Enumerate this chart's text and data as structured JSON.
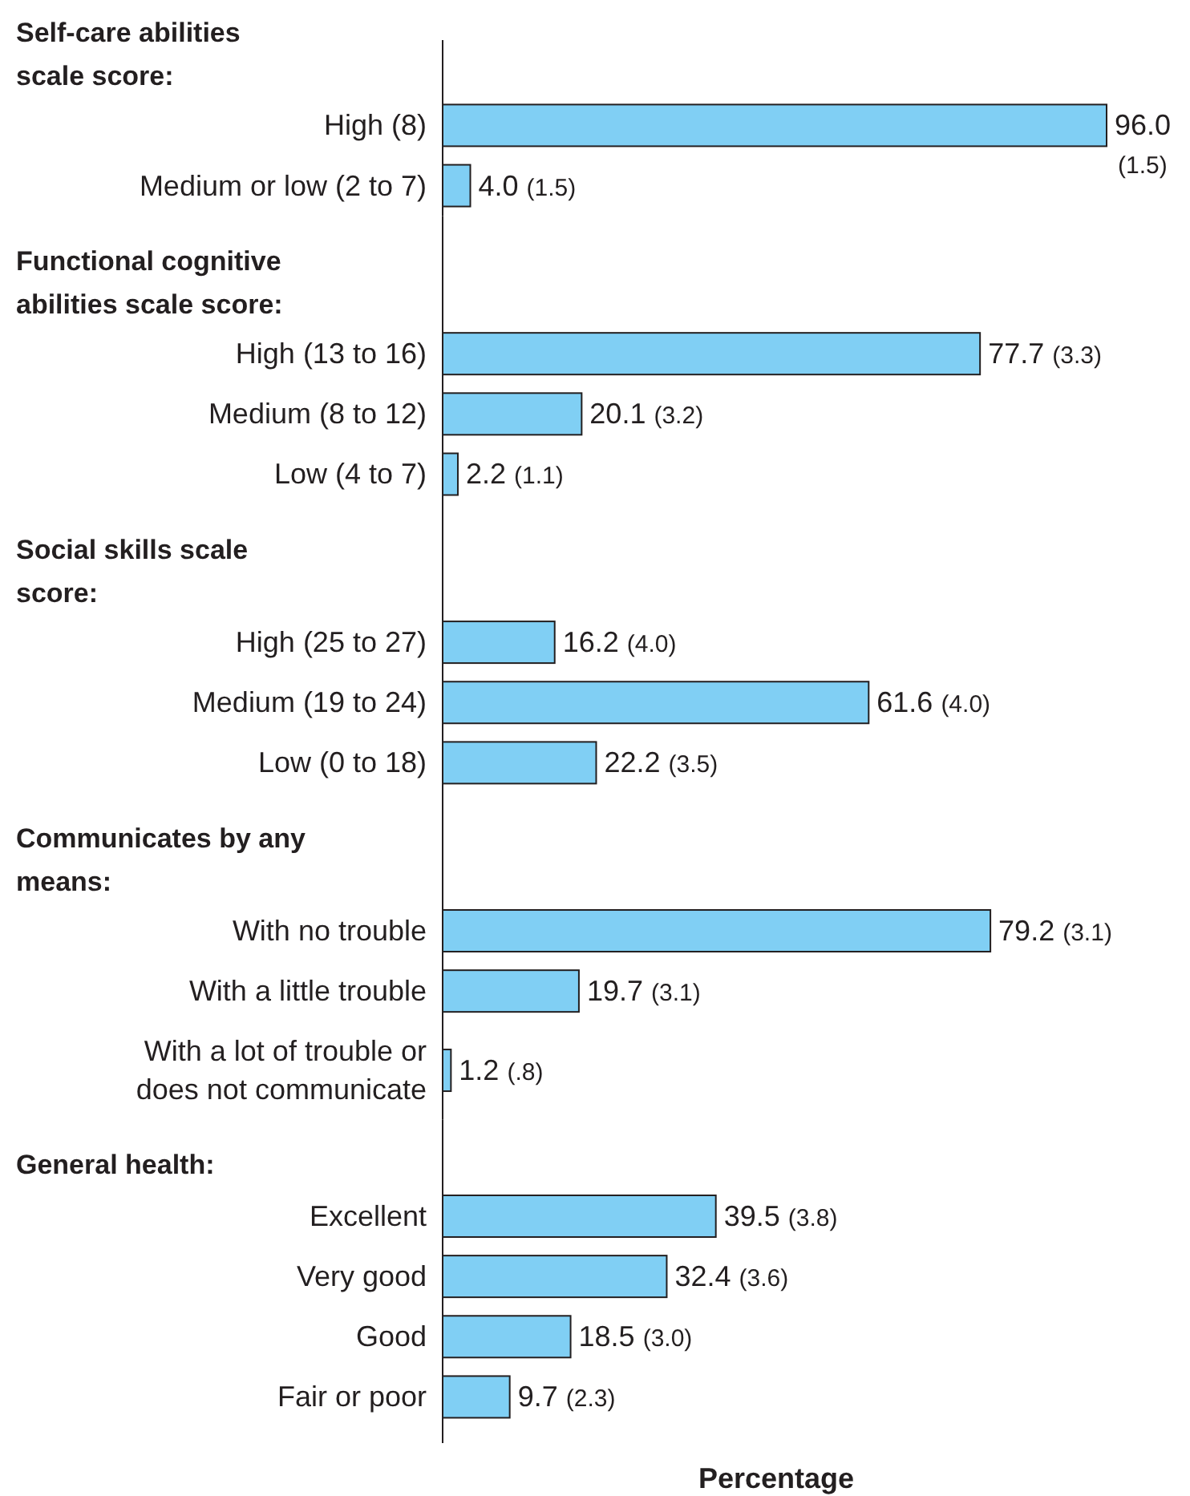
{
  "chart_data": [
    {
      "type": "bar",
      "orientation": "horizontal",
      "color": "#80cff4",
      "title": "Self-care abilities scale score:",
      "categories": [
        "High (8)",
        "Medium or low (2 to 7)"
      ],
      "values": [
        96.0,
        4.0
      ],
      "value_labels": [
        "96.0 (1.5)",
        "4.0 (1.5)"
      ]
    },
    {
      "type": "bar",
      "orientation": "horizontal",
      "color": "#80cff4",
      "title": "Functional cognitive abilities scale score:",
      "categories": [
        "High (13 to 16)",
        "Medium (8 to 12)",
        "Low (4 to 7)"
      ],
      "values": [
        77.7,
        20.1,
        2.2
      ],
      "value_labels": [
        "77.7 (3.3)",
        "20.1 (3.2)",
        "2.2 (1.1)"
      ]
    },
    {
      "type": "bar",
      "orientation": "horizontal",
      "color": "#80cff4",
      "title": "Social skills scale score:",
      "categories": [
        "High (25 to 27)",
        "Medium (19 to 24)",
        "Low (0 to 18)"
      ],
      "values": [
        16.2,
        61.6,
        22.2
      ],
      "value_labels": [
        "16.2 (4.0)",
        "61.6 (4.0)",
        "22.2 (3.5)"
      ]
    },
    {
      "type": "bar",
      "orientation": "horizontal",
      "color": "#80cff4",
      "title": "Communicates by any means:",
      "categories": [
        "With no trouble",
        "With a little trouble",
        "With a lot of trouble or does not communicate"
      ],
      "values": [
        79.2,
        19.7,
        1.2
      ],
      "value_labels": [
        "79.2 (3.1)",
        "19.7 (3.1)",
        "1.2 (.8)"
      ]
    },
    {
      "type": "bar",
      "orientation": "horizontal",
      "color": "#80cff4",
      "title": "General health:",
      "categories": [
        "Excellent",
        "Very good",
        "Good",
        "Fair or poor"
      ],
      "values": [
        39.5,
        32.4,
        18.5,
        9.7
      ],
      "value_labels": [
        "39.5 (3.8)",
        "32.4 (3.6)",
        "18.5 (3.0)",
        "9.7 (2.3)"
      ],
      "xlabel": "Percentage"
    }
  ]
}
